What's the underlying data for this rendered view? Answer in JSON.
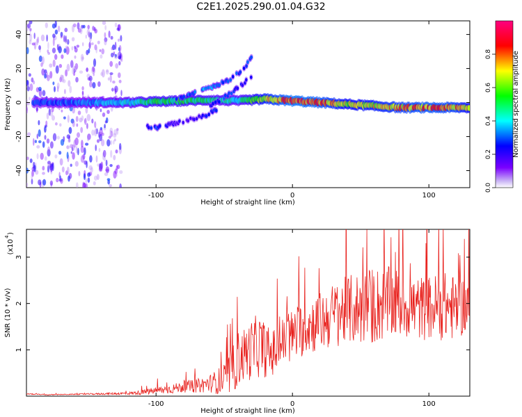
{
  "title": "C2E1.2025.290.01.04.G32",
  "chart_data": [
    {
      "type": "heatmap",
      "title": "C2E1.2025.290.01.04.G32",
      "xlabel": "Height of straight line (km)",
      "ylabel": "Frequency (Hz)",
      "xlim": [
        -195,
        130
      ],
      "ylim": [
        -50,
        48
      ],
      "xticks": [
        -100,
        0,
        100
      ],
      "xtick_labels": [
        "-100",
        "0",
        "100"
      ],
      "yticks": [
        -40,
        -20,
        0,
        20,
        40
      ],
      "ytick_labels": [
        "-40",
        "-20",
        "0",
        "20",
        "40"
      ],
      "colorbar": {
        "label": "Normalized spectral amplitude",
        "range": [
          0,
          1
        ],
        "ticks": [
          0.0,
          0.2,
          0.4,
          0.6,
          0.8
        ],
        "tick_labels": [
          "0.0",
          "0.2",
          "0.4",
          "0.6",
          "0.8"
        ],
        "colormap": [
          "#ffffff",
          "#7b00ff",
          "#0000ff",
          "#00ffff",
          "#00ff00",
          "#ffff00",
          "#ff0000",
          "#ff0080"
        ]
      },
      "features": [
        {
          "name": "main carrier line",
          "x": [
            -190,
            -150,
            -120,
            -100,
            -80,
            -60,
            -40,
            -20,
            0,
            20,
            40,
            60,
            80,
            100,
            120,
            130
          ],
          "y": [
            0,
            0,
            0,
            0.5,
            1,
            1.5,
            1,
            2,
            1,
            0,
            -1,
            -2,
            -3,
            -3,
            -3,
            -3
          ],
          "amplitude": [
            0.3,
            0.35,
            0.45,
            0.55,
            0.55,
            0.5,
            0.45,
            0.75,
            0.9,
            0.85,
            0.7,
            0.75,
            0.8,
            0.85,
            0.8,
            0.7
          ]
        },
        {
          "name": "rising branch",
          "x": [
            -85,
            -75,
            -65,
            -55,
            -45,
            -35,
            -30
          ],
          "y": [
            2,
            5,
            8,
            10,
            14,
            20,
            27
          ],
          "amplitude": [
            0.3,
            0.35,
            0.4,
            0.35,
            0.3,
            0.3,
            0.3
          ]
        },
        {
          "name": "descending branch",
          "x": [
            -60,
            -52,
            -45,
            -38,
            -32,
            -26
          ],
          "y": [
            -2,
            2,
            6,
            10,
            14,
            18
          ],
          "amplitude": [
            0.25,
            0.3,
            0.3,
            0.25,
            0.25,
            0.2
          ]
        },
        {
          "name": "lower branch",
          "x": [
            -108,
            -100,
            -85,
            -75,
            -65,
            -55
          ],
          "y": [
            -14,
            -15,
            -12,
            -10,
            -8,
            -4
          ],
          "amplitude": [
            0.25,
            0.3,
            0.2,
            0.2,
            0.25,
            0.3
          ]
        },
        {
          "name": "scattered noise",
          "x_range": [
            -195,
            -125
          ],
          "y_range": [
            -50,
            48
          ],
          "amplitude": [
            0.05,
            0.3
          ]
        }
      ]
    },
    {
      "type": "line",
      "xlabel": "Height of straight line (km)",
      "ylabel": "SNR (10 * v/v)",
      "y_scale_label": "(x10",
      "y_scale_exp": "4",
      "xlim": [
        -195,
        130
      ],
      "ylim": [
        0,
        3.6
      ],
      "xticks": [
        -100,
        0,
        100
      ],
      "xtick_labels": [
        "-100",
        "0",
        "100"
      ],
      "yticks": [
        1,
        2,
        3
      ],
      "ytick_labels": [
        "1",
        "2",
        "3"
      ],
      "color": "#e8201c",
      "series": [
        {
          "name": "SNR",
          "x": [
            -195,
            -180,
            -160,
            -140,
            -120,
            -110,
            -100,
            -90,
            -80,
            -70,
            -60,
            -50,
            -45,
            -40,
            -35,
            -30,
            -25,
            -20,
            -15,
            -10,
            -5,
            0,
            5,
            10,
            20,
            30,
            40,
            50,
            60,
            70,
            80,
            90,
            100,
            110,
            120,
            130
          ],
          "y": [
            0.05,
            0.03,
            0.04,
            0.05,
            0.06,
            0.08,
            0.12,
            0.15,
            0.2,
            0.22,
            0.28,
            0.35,
            0.5,
            0.8,
            0.9,
            1.0,
            1.1,
            1.0,
            0.9,
            1.1,
            1.2,
            1.3,
            1.4,
            1.5,
            1.6,
            1.75,
            1.85,
            1.9,
            1.95,
            2.0,
            2.0,
            1.9,
            1.9,
            1.95,
            1.9,
            2.0
          ],
          "spread": [
            0.01,
            0.01,
            0.01,
            0.02,
            0.03,
            0.05,
            0.08,
            0.1,
            0.12,
            0.15,
            0.2,
            0.35,
            0.5,
            0.6,
            0.6,
            0.65,
            0.7,
            0.6,
            0.5,
            0.55,
            0.55,
            0.6,
            0.6,
            0.6,
            0.65,
            0.7,
            0.75,
            0.8,
            0.85,
            0.8,
            0.75,
            0.7,
            0.7,
            0.75,
            0.7,
            0.6
          ]
        }
      ]
    }
  ]
}
